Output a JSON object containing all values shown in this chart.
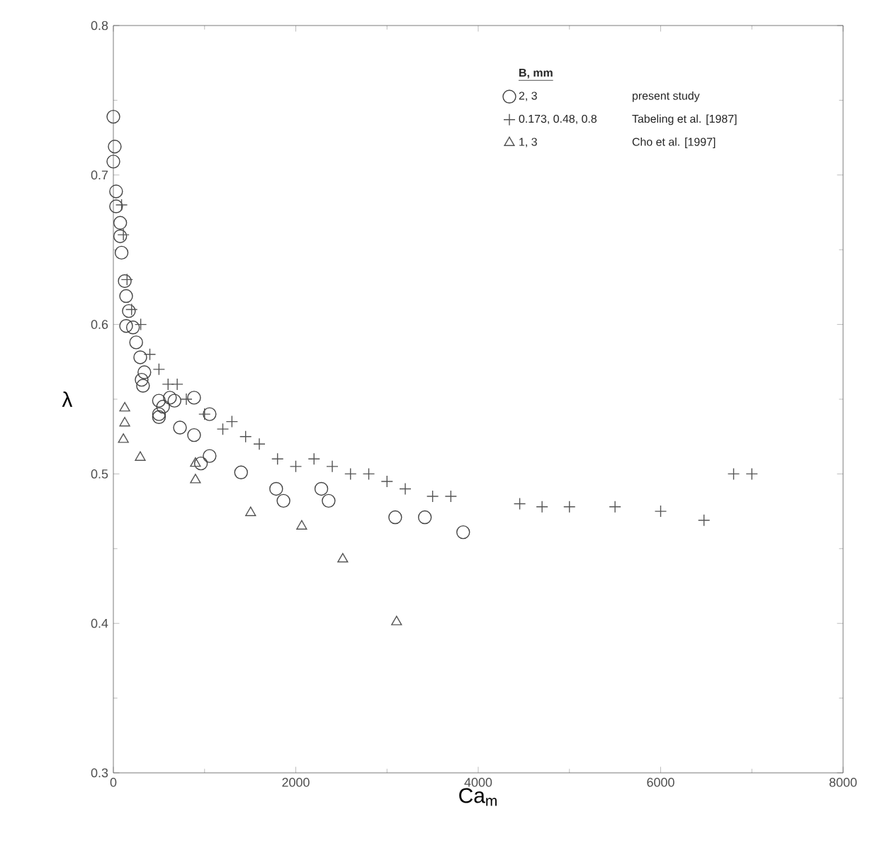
{
  "chart_data": {
    "type": "scatter",
    "xlabel": "Ca$_{m}$",
    "ylabel": "λ",
    "legend_title": "B, mm",
    "xlim": [
      0,
      8000
    ],
    "ylim": [
      0.3,
      0.8
    ],
    "xticks": [
      0,
      2000,
      4000,
      6000,
      8000
    ],
    "yticks": [
      0.3,
      0.4,
      0.5,
      0.6,
      0.7,
      0.8
    ],
    "grid": false,
    "legend": "top right",
    "annotations": [
      "present study",
      "Tabeling et al. [1987]",
      "Cho et al. [1997]"
    ],
    "series": [
      {
        "name": "2, 3",
        "color": "#444444",
        "marker": "circle",
        "x": [
          0,
          15,
          0,
          30,
          30,
          75,
          75,
          90,
          125,
          140,
          170,
          140,
          215,
          250,
          295,
          340,
          325,
          500,
          545,
          500,
          310,
          620,
          670,
          885,
          500,
          730,
          1055,
          885,
          1055,
          960,
          1400,
          1785,
          1865,
          2280,
          2360,
          3090,
          3415,
          3835
        ],
        "values": [
          0.739,
          0.719,
          0.709,
          0.689,
          0.679,
          0.668,
          0.659,
          0.648,
          0.629,
          0.619,
          0.609,
          0.599,
          0.598,
          0.588,
          0.578,
          0.568,
          0.559,
          0.549,
          0.545,
          0.538,
          0.563,
          0.551,
          0.549,
          0.551,
          0.54,
          0.531,
          0.54,
          0.526,
          0.512,
          0.507,
          0.501,
          0.49,
          0.482,
          0.49,
          0.482,
          0.471,
          0.471,
          0.461
        ]
      },
      {
        "name": "0.173, 0.48, 0.8",
        "color": "#555555",
        "marker": "cross",
        "x": [
          90,
          110,
          150,
          200,
          300,
          400,
          500,
          600,
          700,
          800,
          1000,
          1200,
          1300,
          1450,
          1600,
          1800,
          2000,
          2200,
          2400,
          2600,
          2800,
          3000,
          3200,
          3500,
          3700,
          4455,
          4700,
          5000,
          5500,
          6000,
          6475,
          6800,
          7000
        ],
        "values": [
          0.68,
          0.66,
          0.63,
          0.61,
          0.6,
          0.58,
          0.57,
          0.56,
          0.56,
          0.55,
          0.54,
          0.53,
          0.535,
          0.525,
          0.52,
          0.51,
          0.505,
          0.51,
          0.505,
          0.5,
          0.5,
          0.495,
          0.49,
          0.485,
          0.485,
          0.48,
          0.478,
          0.478,
          0.478,
          0.475,
          0.469,
          0.5,
          0.5
        ]
      },
      {
        "name": "1, 3",
        "color": "#555555",
        "marker": "triangle",
        "x": [
          125,
          125,
          110,
          295,
          900,
          900,
          1505,
          2065,
          2515,
          3105
        ],
        "values": [
          0.544,
          0.534,
          0.523,
          0.511,
          0.507,
          0.496,
          0.474,
          0.465,
          0.443,
          0.401
        ]
      }
    ]
  }
}
